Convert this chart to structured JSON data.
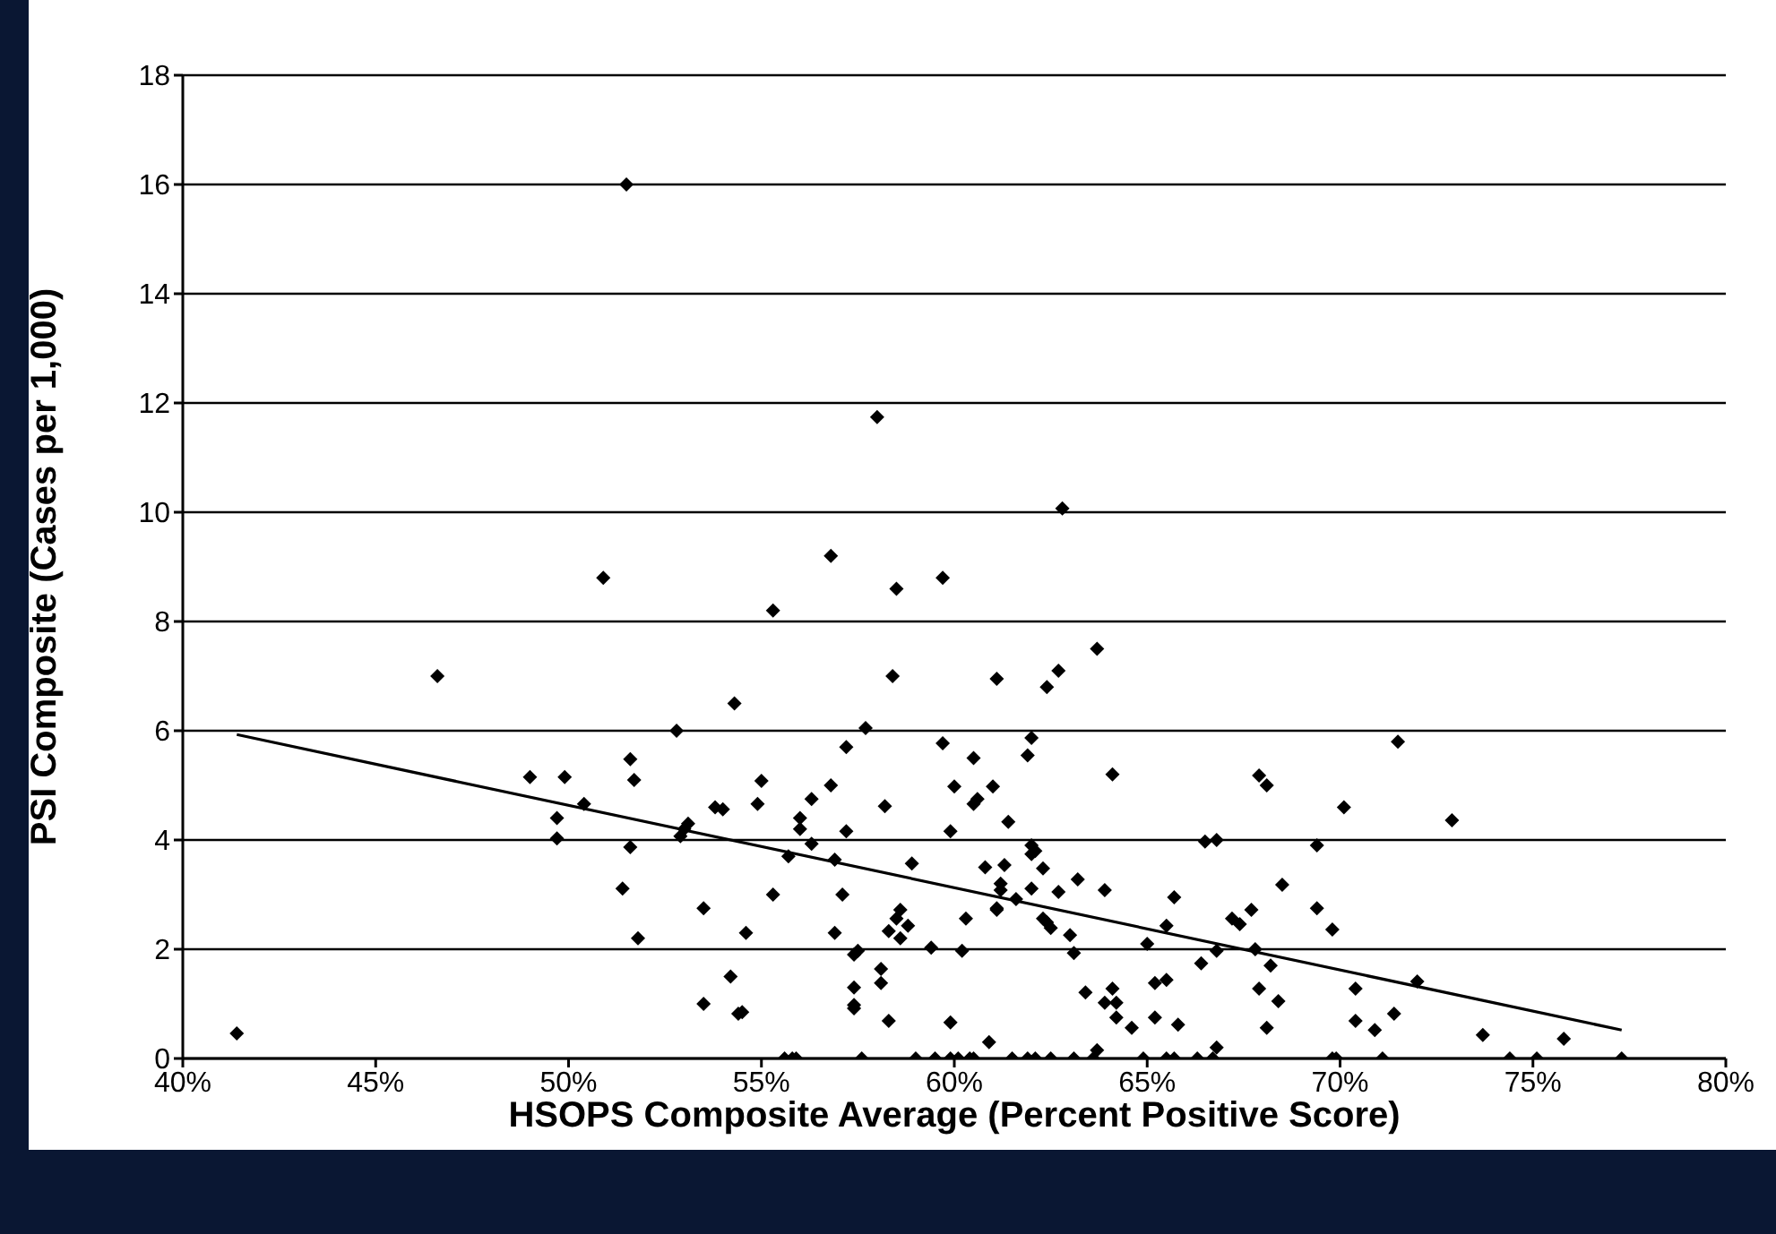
{
  "chart_data": {
    "type": "scatter",
    "xlabel": "HSOPS Composite Average (Percent Positive Score)",
    "ylabel": "PSI Composite (Cases per 1,000)",
    "xlim": [
      40,
      80
    ],
    "xticks": [
      {
        "value": 40,
        "label": "40%"
      },
      {
        "value": 45,
        "label": "45%"
      },
      {
        "value": 50,
        "label": "50%"
      },
      {
        "value": 55,
        "label": "55%"
      },
      {
        "value": 60,
        "label": "60%"
      },
      {
        "value": 65,
        "label": "65%"
      },
      {
        "value": 70,
        "label": "70%"
      },
      {
        "value": 75,
        "label": "75%"
      },
      {
        "value": 80,
        "label": "80%"
      }
    ],
    "ylim": [
      0,
      18
    ],
    "yticks": [
      0,
      2,
      4,
      6,
      8,
      10,
      12,
      14,
      16,
      18
    ],
    "grid": "y",
    "series": [
      {
        "marker": "diamond",
        "color": "#000000",
        "x": [
          41.4,
          46.6,
          50.9,
          52.8,
          49.0,
          49.9,
          51.6,
          51.7,
          50.4,
          49.7,
          49.7,
          51.6,
          51.4,
          51.8,
          52.9,
          53.0,
          53.1,
          53.5,
          53.5,
          55.3,
          58.5,
          59.7,
          54.3,
          58.4,
          61.1,
          62.4,
          62.7,
          63.7,
          57.7,
          57.2,
          59.7,
          60.5,
          61.9,
          62.0,
          64.1,
          55.0,
          54.9,
          53.8,
          54.0,
          56.8,
          56.3,
          56.0,
          56.0,
          58.2,
          60.0,
          60.6,
          60.5,
          61.0,
          61.4,
          59.9,
          57.2,
          56.3,
          55.7,
          56.9,
          58.9,
          60.8,
          61.3,
          62.0,
          62.1,
          62.0,
          62.3,
          61.2,
          61.2,
          62.0,
          62.7,
          63.2,
          63.9,
          65.7,
          61.6,
          61.1,
          61.1,
          55.3,
          57.1,
          58.6,
          58.5,
          58.8,
          58.3,
          58.6,
          60.3,
          62.3,
          62.4,
          62.5,
          63.0,
          63.1,
          56.9,
          54.6,
          57.4,
          57.5,
          59.4,
          60.2,
          65.0,
          65.5,
          54.2,
          54.4,
          54.5,
          57.4,
          57.4,
          57.4,
          58.1,
          58.1,
          58.3,
          59.9,
          60.9,
          63.4,
          63.9,
          64.1,
          64.2,
          64.2,
          64.6,
          65.2,
          65.2,
          65.5,
          65.8,
          55.6,
          55.8,
          55.9,
          57.6,
          59.0,
          59.5,
          59.9,
          60.1,
          60.4,
          60.5,
          61.5,
          61.9,
          62.1,
          62.5,
          63.1,
          63.6,
          64.9,
          65.5,
          65.7,
          63.7,
          71.5,
          67.9,
          68.1,
          70.1,
          72.9,
          66.5,
          66.8,
          69.4,
          68.5,
          69.4,
          67.2,
          67.4,
          67.7,
          69.8,
          66.8,
          67.8,
          68.2,
          66.4,
          67.9,
          68.4,
          70.4,
          72.0,
          68.1,
          70.4,
          70.9,
          71.4,
          73.7,
          75.8,
          66.8,
          66.3,
          66.7,
          69.8,
          69.9,
          71.1,
          74.4,
          75.1,
          77.3,
          51.5,
          58.0,
          56.8,
          62.8
        ],
        "values": [
          0.46,
          7.0,
          8.8,
          6.0,
          5.15,
          5.15,
          5.48,
          5.1,
          4.66,
          4.4,
          4.03,
          3.87,
          3.11,
          2.2,
          4.07,
          4.2,
          4.3,
          2.75,
          1.0,
          8.2,
          8.6,
          8.8,
          6.5,
          7.0,
          6.95,
          6.8,
          7.1,
          7.5,
          6.05,
          5.7,
          5.77,
          5.5,
          5.55,
          5.87,
          5.2,
          5.08,
          4.66,
          4.6,
          4.56,
          5.0,
          4.75,
          4.4,
          4.2,
          4.62,
          4.98,
          4.75,
          4.66,
          4.98,
          4.33,
          4.16,
          4.16,
          3.93,
          3.7,
          3.64,
          3.57,
          3.5,
          3.54,
          3.9,
          3.8,
          3.74,
          3.48,
          3.2,
          3.08,
          3.11,
          3.05,
          3.28,
          3.08,
          2.95,
          2.92,
          2.75,
          2.72,
          3.0,
          3.0,
          2.72,
          2.56,
          2.43,
          2.33,
          2.2,
          2.56,
          2.56,
          2.49,
          2.39,
          2.26,
          1.93,
          2.3,
          2.3,
          1.9,
          1.97,
          2.03,
          1.97,
          2.1,
          2.43,
          1.5,
          0.82,
          0.85,
          1.3,
          0.98,
          0.92,
          1.64,
          1.38,
          0.69,
          0.66,
          0.3,
          1.21,
          1.02,
          1.28,
          1.02,
          0.75,
          0.56,
          0.75,
          1.38,
          1.44,
          0.62,
          0,
          0,
          0,
          0,
          0,
          0,
          0,
          0,
          0,
          0,
          0,
          0,
          0,
          0,
          0,
          0,
          0,
          0,
          0,
          0.15,
          5.8,
          5.18,
          5.0,
          4.6,
          4.36,
          3.97,
          4.0,
          3.9,
          3.18,
          2.75,
          2.56,
          2.46,
          2.72,
          2.36,
          1.97,
          2.0,
          1.7,
          1.74,
          1.28,
          1.05,
          1.28,
          1.41,
          0.56,
          0.69,
          0.52,
          0.82,
          0.43,
          0.36,
          0.2,
          0,
          0,
          0,
          0,
          0,
          0,
          0,
          0,
          16.0,
          11.74,
          9.2,
          10.07
        ]
      },
      {
        "type": "line",
        "marker": "none",
        "color": "#000000",
        "x": [
          41.4,
          77.3
        ],
        "values": [
          5.93,
          0.52
        ]
      }
    ]
  }
}
